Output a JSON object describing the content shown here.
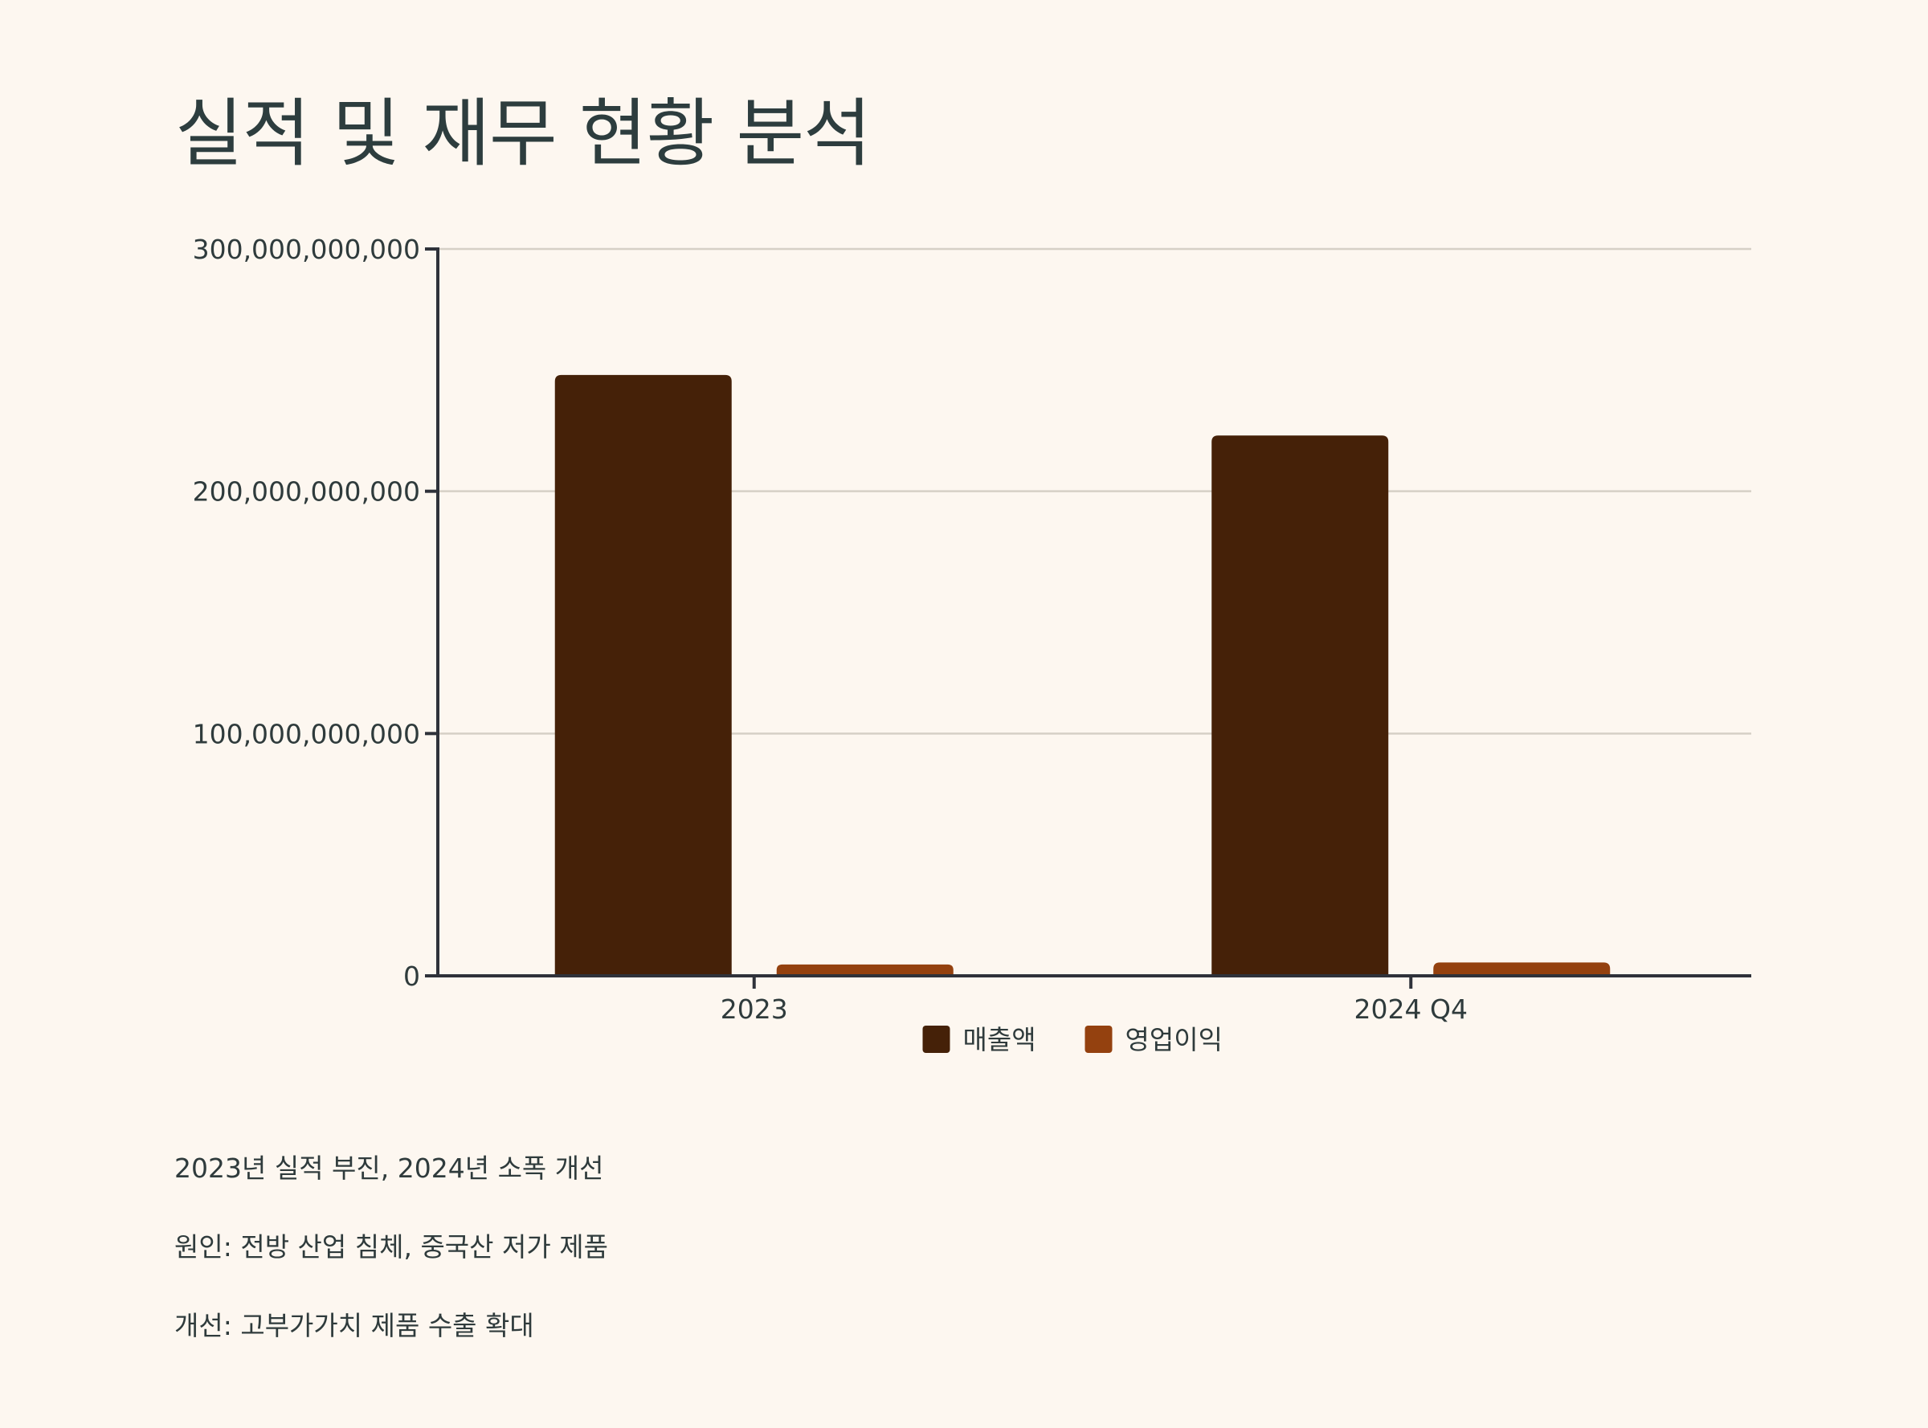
{
  "title": "실적 및 재무 현황 분석",
  "chart_data": {
    "type": "bar",
    "categories": [
      "2023",
      "2024 Q4"
    ],
    "series": [
      {
        "name": "매출액",
        "values": [
          248000000000,
          223000000000
        ],
        "color": "#452108"
      },
      {
        "name": "영업이익",
        "values": [
          4700000000,
          5500000000
        ],
        "color": "#94410f"
      }
    ],
    "ylim": [
      0,
      300000000000
    ],
    "yticks": [
      0,
      100000000000,
      200000000000,
      300000000000
    ],
    "ytick_labels": [
      "0",
      "100,000,000,000",
      "200,000,000,000",
      "300,000,000,000"
    ],
    "grid": true,
    "legend": "bottom-center"
  },
  "notes": [
    "2023년 실적 부진, 2024년 소폭 개선",
    "원인: 전방 산업 침체, 중국산 저가 제품",
    "개선: 고부가가치 제품 수출 확대"
  ],
  "colors": {
    "background": "#fdf7f0",
    "axis": "#2f323a",
    "grid": "#d6d0c6",
    "text": "#2f3b3c"
  }
}
